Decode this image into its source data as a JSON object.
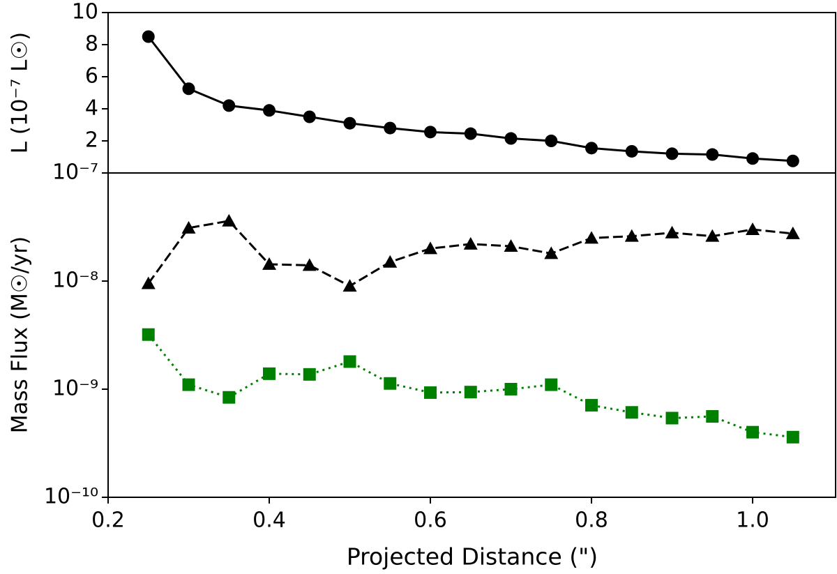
{
  "chart_data": [
    {
      "type": "line",
      "ylabel": "L (10⁻⁷ L☉)",
      "x": [
        0.25,
        0.3,
        0.35,
        0.4,
        0.45,
        0.5,
        0.55,
        0.6,
        0.65,
        0.7,
        0.75,
        0.8,
        0.85,
        0.9,
        0.95,
        1.0,
        1.05
      ],
      "xlim": [
        0.2,
        1.103
      ],
      "ylim": [
        0,
        10
      ],
      "yticks": [
        2,
        4,
        6,
        8,
        10
      ],
      "log_y": false,
      "series": [
        {
          "color": "#000000",
          "marker": "circle",
          "linestyle": "solid",
          "values": [
            8.5,
            5.25,
            4.2,
            3.9,
            3.5,
            3.1,
            2.8,
            2.55,
            2.45,
            2.15,
            2.0,
            1.55,
            1.35,
            1.2,
            1.15,
            0.9,
            0.75
          ]
        }
      ]
    },
    {
      "type": "line",
      "ylabel": "Mass Flux (M☉/yr)",
      "xlabel": "Projected Distance (\")",
      "x": [
        0.25,
        0.3,
        0.35,
        0.4,
        0.45,
        0.5,
        0.55,
        0.6,
        0.65,
        0.7,
        0.75,
        0.8,
        0.85,
        0.9,
        0.95,
        1.0,
        1.05
      ],
      "xlim": [
        0.2,
        1.103
      ],
      "xticks": [
        0.2,
        0.4,
        0.6,
        0.8,
        {
          "value": 1.0,
          "label": "1.0"
        }
      ],
      "ylim": [
        1e-10,
        1e-07
      ],
      "yticks": [
        {
          "value": 1e-10,
          "label": "10⁻¹⁰"
        },
        {
          "value": 1e-09,
          "label": "10⁻⁹"
        },
        {
          "value": 1e-08,
          "label": "10⁻⁸"
        },
        {
          "value": 1e-07,
          "label": "10⁻⁷"
        }
      ],
      "log_y": true,
      "series": [
        {
          "color": "#000000",
          "marker": "triangle",
          "linestyle": "dashed",
          "values": [
            9.5e-09,
            3.1e-08,
            3.6e-08,
            1.43e-08,
            1.4e-08,
            9e-09,
            1.5e-08,
            2e-08,
            2.2e-08,
            2.1e-08,
            1.8e-08,
            2.5e-08,
            2.6e-08,
            2.8e-08,
            2.6e-08,
            3e-08,
            2.75e-08
          ]
        },
        {
          "color": "#008000",
          "marker": "square",
          "linestyle": "dotted",
          "values": [
            3.2e-09,
            1.1e-09,
            8.4e-10,
            1.39e-09,
            1.37e-09,
            1.8e-09,
            1.13e-09,
            9.3e-10,
            9.4e-10,
            1e-09,
            1.1e-09,
            7.1e-10,
            6.1e-10,
            5.4e-10,
            5.6e-10,
            4e-10,
            3.6e-10
          ]
        }
      ]
    }
  ]
}
